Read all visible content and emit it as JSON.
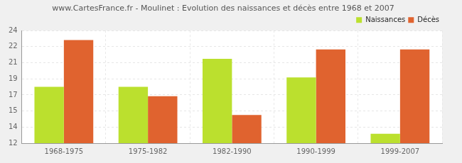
{
  "chart_data": {
    "type": "bar",
    "title": "www.CartesFrance.fr - Moulinet : Evolution des naissances et décès entre 1968 et 2007",
    "categories": [
      "1968-1975",
      "1975-1982",
      "1982-1990",
      "1990-1999",
      "1999-2007"
    ],
    "series": [
      {
        "name": "Naissances",
        "color": "#bbe02e",
        "values": [
          18,
          18,
          21,
          19,
          13
        ]
      },
      {
        "name": "Décès",
        "color": "#e0632f",
        "values": [
          23,
          17,
          15,
          22,
          22
        ]
      }
    ],
    "ylim": [
      12,
      24
    ],
    "yticks": [
      12,
      {
        "value": 13.71,
        "label": "14"
      },
      {
        "value": 15.43,
        "label": "15"
      },
      {
        "value": 17.14,
        "label": "17"
      },
      {
        "value": 18.86,
        "label": "19"
      },
      {
        "value": 20.57,
        "label": "21"
      },
      {
        "value": 22.29,
        "label": "22"
      },
      24
    ],
    "grid": true,
    "legend": "top-right"
  }
}
